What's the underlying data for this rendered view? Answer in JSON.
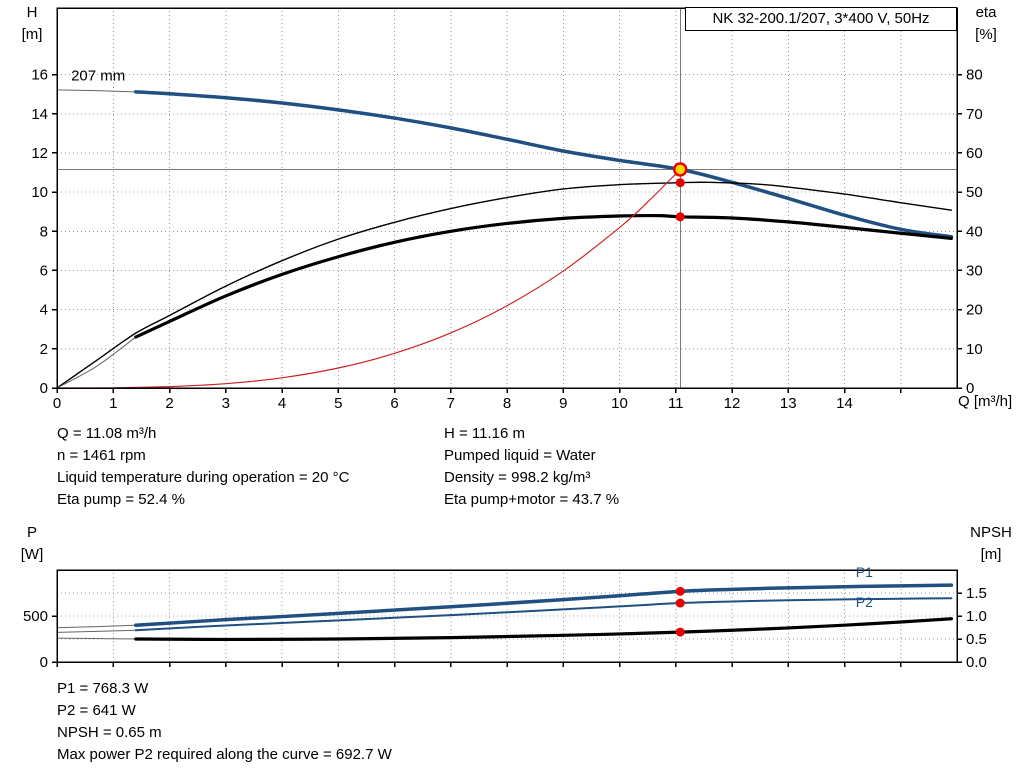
{
  "colors": {
    "blue": "#1f5081",
    "red": "#cc2222",
    "marker_red": "#e60000",
    "duty_yellow": "#ffd700",
    "grid": "#999999",
    "crosshair": "#7a7a7a",
    "lead": "#666666"
  },
  "titles": {
    "box": "NK 32-200.1/207, 3*400 V, 50Hz",
    "h_axis": [
      "H",
      "[m]"
    ],
    "eta_axis": [
      "eta",
      "[%]"
    ],
    "q_axis": "Q [m³/h]",
    "p_axis": [
      "P",
      "[W]"
    ],
    "npsh_axis": [
      "NPSH",
      "[m]"
    ]
  },
  "info_top": {
    "left": [
      "Q = 11.08 m³/h",
      "n = 1461 rpm",
      "Liquid temperature during operation = 20 °C",
      "Eta pump = 52.4 %"
    ],
    "right": [
      "H = 11.16 m",
      "Pumped liquid = Water",
      "Density = 998.2 kg/m³",
      "Eta pump+motor = 43.7 %"
    ]
  },
  "info_bottom": [
    "P1 = 768.3 W",
    "P2 = 641 W",
    "NPSH = 0.65 m",
    "Max power P2 required along the curve = 692.7 W"
  ],
  "chart_data": [
    {
      "type": "line",
      "title": "NK 32-200.1/207, 3*400 V, 50Hz",
      "xlabel": "Q [m³/h]",
      "ylabel_left": "H [m]",
      "ylabel_right": "eta [%]",
      "xlim": [
        0,
        16
      ],
      "ylim_left": [
        0,
        19.4
      ],
      "ylim_right": [
        0,
        97
      ],
      "x_tick_vals": [
        0,
        1,
        2,
        3,
        4,
        5,
        6,
        7,
        8,
        9,
        10,
        11,
        12,
        13,
        14
      ],
      "x_tick_labels": [
        "0",
        "1",
        "2",
        "3",
        "4",
        "5",
        "6",
        "7",
        "8",
        "9",
        "10",
        "11",
        "12",
        "13",
        "14"
      ],
      "x_tick_minor": [
        15
      ],
      "y_left_tick_vals": [
        0,
        2,
        4,
        6,
        8,
        10,
        12,
        14,
        16
      ],
      "y_left_tick_labels": [
        "0",
        "2",
        "4",
        "6",
        "8",
        "10",
        "12",
        "14",
        "16"
      ],
      "y_right_tick_vals": [
        0,
        10,
        20,
        30,
        40,
        50,
        60,
        70,
        80
      ],
      "y_right_tick_labels": [
        "0",
        "10",
        "20",
        "30",
        "40",
        "50",
        "60",
        "70",
        "80"
      ],
      "grid_x": [
        1,
        2,
        3,
        4,
        5,
        6,
        7,
        8,
        9,
        10,
        11,
        12,
        13,
        14,
        15
      ],
      "grid_y_left": [
        2,
        4,
        6,
        8,
        10,
        12,
        14,
        16
      ],
      "grid_y_right": [],
      "crosshair": {
        "x": 11.08,
        "y": 11.16
      },
      "series": [
        {
          "name": "head-curve-lead",
          "axis": "left",
          "style": "lead",
          "points": [
            [
              0,
              15.22
            ],
            [
              0.7,
              15.18
            ],
            [
              1.4,
              15.12
            ]
          ]
        },
        {
          "name": "head-curve-207mm",
          "axis": "left",
          "style": "blue-thick",
          "points": [
            [
              1.4,
              15.12
            ],
            [
              2,
              15.02
            ],
            [
              3,
              14.82
            ],
            [
              4,
              14.55
            ],
            [
              5,
              14.2
            ],
            [
              6,
              13.78
            ],
            [
              7,
              13.28
            ],
            [
              8,
              12.7
            ],
            [
              9,
              12.1
            ],
            [
              10,
              11.62
            ],
            [
              11.08,
              11.16
            ],
            [
              12,
              10.5
            ],
            [
              13,
              9.68
            ],
            [
              14,
              8.82
            ],
            [
              15,
              8.1
            ],
            [
              15.9,
              7.72
            ]
          ]
        },
        {
          "name": "eta-pump-curve",
          "axis": "right",
          "style": "black-thin",
          "points": [
            [
              0,
              0
            ],
            [
              0.7,
              7
            ],
            [
              1.4,
              14
            ],
            [
              2,
              18.5
            ],
            [
              3,
              26
            ],
            [
              4,
              32.5
            ],
            [
              5,
              38
            ],
            [
              6,
              42.3
            ],
            [
              7,
              45.8
            ],
            [
              8,
              48.6
            ],
            [
              9,
              50.8
            ],
            [
              10,
              51.9
            ],
            [
              11.08,
              52.4
            ],
            [
              11.6,
              52.5
            ],
            [
              12.5,
              52
            ],
            [
              13,
              51.3
            ],
            [
              14,
              49.5
            ],
            [
              15,
              47.3
            ],
            [
              15.9,
              45.4
            ]
          ]
        },
        {
          "name": "eta-pump-motor-lead",
          "axis": "right",
          "style": "lead",
          "points": [
            [
              0,
              0
            ],
            [
              0.7,
              5.5
            ],
            [
              1.4,
              13
            ]
          ]
        },
        {
          "name": "eta-pump-motor-curve",
          "axis": "right",
          "style": "black-thick",
          "points": [
            [
              1.4,
              13
            ],
            [
              2,
              17
            ],
            [
              3,
              23.5
            ],
            [
              4,
              29
            ],
            [
              5,
              33.5
            ],
            [
              6,
              37.2
            ],
            [
              7,
              40
            ],
            [
              8,
              42
            ],
            [
              9,
              43.3
            ],
            [
              10,
              43.9
            ],
            [
              10.7,
              44
            ],
            [
              11.08,
              43.7
            ],
            [
              12,
              43.4
            ],
            [
              13,
              42.4
            ],
            [
              14,
              41
            ],
            [
              15,
              39.5
            ],
            [
              15.9,
              38.2
            ]
          ]
        },
        {
          "name": "system-curve",
          "axis": "left",
          "style": "red-thin",
          "points": [
            [
              0,
              0
            ],
            [
              1,
              0.01
            ],
            [
              2,
              0.07
            ],
            [
              3,
              0.22
            ],
            [
              4,
              0.52
            ],
            [
              5,
              1.02
            ],
            [
              6,
              1.77
            ],
            [
              7,
              2.81
            ],
            [
              8,
              4.2
            ],
            [
              9,
              5.97
            ],
            [
              10,
              8.19
            ],
            [
              10.5,
              9.49
            ],
            [
              11.08,
              11.16
            ]
          ]
        }
      ],
      "markers": [
        {
          "name": "duty-point",
          "axis": "left",
          "kind": "duty",
          "x": 11.08,
          "y": 11.16
        },
        {
          "name": "eta-pump-point",
          "axis": "right",
          "kind": "dot",
          "x": 11.08,
          "y": 52.4
        },
        {
          "name": "eta-pump-motor-point",
          "axis": "right",
          "kind": "dot",
          "x": 11.08,
          "y": 43.7
        }
      ],
      "annotations": [
        {
          "name": "impeller-size-label",
          "text": "207 mm",
          "axis": "left",
          "x": 0.25,
          "y": 15.7,
          "anchor": "start",
          "color": "#000000",
          "size": 15
        }
      ]
    },
    {
      "type": "line",
      "ylabel_left": "P [W]",
      "ylabel_right": "NPSH [m]",
      "xlim": [
        0,
        16
      ],
      "ylim_left": [
        0,
        1000
      ],
      "ylim_right": [
        0,
        2.0
      ],
      "x_tick_vals": [
        0,
        1,
        2,
        3,
        4,
        5,
        6,
        7,
        8,
        9,
        10,
        11,
        12,
        13,
        14,
        15
      ],
      "x_tick_labels": [],
      "x_tick_minor": [],
      "y_left_tick_vals": [
        0,
        500
      ],
      "y_left_tick_labels": [
        "0",
        "500"
      ],
      "y_right_tick_vals": [
        0,
        0.5,
        1,
        1.5
      ],
      "y_right_tick_labels": [
        "0.0",
        "0.5",
        "1.0",
        "1.5"
      ],
      "grid_x": [
        1,
        2,
        3,
        4,
        5,
        6,
        7,
        8,
        9,
        10,
        11,
        12,
        13,
        14,
        15
      ],
      "grid_y_left": [
        500
      ],
      "grid_y_right": [
        0.5,
        1,
        1.5
      ],
      "series": [
        {
          "name": "p1-curve-lead",
          "axis": "left",
          "style": "lead",
          "points": [
            [
              0,
              372
            ],
            [
              0.7,
              385
            ],
            [
              1.4,
              400
            ]
          ]
        },
        {
          "name": "p1-curve",
          "axis": "left",
          "style": "blue-thick",
          "points": [
            [
              1.4,
              400
            ],
            [
              3,
              460
            ],
            [
              5,
              528
            ],
            [
              7,
              600
            ],
            [
              9,
              678
            ],
            [
              10,
              720
            ],
            [
              11.08,
              768.3
            ],
            [
              12,
              790
            ],
            [
              13,
              806
            ],
            [
              14,
              818
            ],
            [
              15,
              828
            ],
            [
              15.9,
              835
            ]
          ]
        },
        {
          "name": "p2-curve-lead",
          "axis": "left",
          "style": "lead",
          "points": [
            [
              0,
              322
            ],
            [
              0.7,
              333
            ],
            [
              1.4,
              345
            ]
          ]
        },
        {
          "name": "p2-curve",
          "axis": "left",
          "style": "blue-med",
          "points": [
            [
              1.4,
              345
            ],
            [
              3,
              397
            ],
            [
              5,
              452
            ],
            [
              7,
              510
            ],
            [
              9,
              572
            ],
            [
              10,
              604
            ],
            [
              11.08,
              641
            ],
            [
              12,
              658
            ],
            [
              13,
              671
            ],
            [
              14,
              681
            ],
            [
              15,
              688
            ],
            [
              15.9,
              692.7
            ]
          ]
        },
        {
          "name": "npsh-curve-lead",
          "axis": "right",
          "style": "lead",
          "points": [
            [
              0,
              0.52
            ],
            [
              0.7,
              0.51
            ],
            [
              1.4,
              0.5
            ]
          ]
        },
        {
          "name": "npsh-curve",
          "axis": "right",
          "style": "black-thick",
          "points": [
            [
              1.4,
              0.5
            ],
            [
              3,
              0.49
            ],
            [
              5,
              0.5
            ],
            [
              7,
              0.53
            ],
            [
              9,
              0.58
            ],
            [
              10,
              0.61
            ],
            [
              11.08,
              0.65
            ],
            [
              12,
              0.69
            ],
            [
              13,
              0.74
            ],
            [
              14,
              0.8
            ],
            [
              15,
              0.87
            ],
            [
              15.9,
              0.94
            ]
          ]
        }
      ],
      "markers": [
        {
          "name": "p1-point",
          "axis": "left",
          "kind": "dot",
          "x": 11.08,
          "y": 768.3
        },
        {
          "name": "p2-point",
          "axis": "left",
          "kind": "dot",
          "x": 11.08,
          "y": 641
        },
        {
          "name": "npsh-point",
          "axis": "right",
          "kind": "dot",
          "x": 11.08,
          "y": 0.65
        }
      ],
      "annotations": [
        {
          "name": "p1-curve-label",
          "text": "P1",
          "axis": "left",
          "x": 14.2,
          "y": 924,
          "anchor": "start",
          "color": "#1f5081",
          "size": 14
        },
        {
          "name": "p2-curve-label",
          "text": "P2",
          "axis": "left",
          "x": 14.2,
          "y": 598,
          "anchor": "start",
          "color": "#1f5081",
          "size": 14
        }
      ]
    }
  ]
}
